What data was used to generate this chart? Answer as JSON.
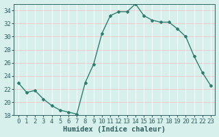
{
  "x": [
    0,
    1,
    2,
    3,
    4,
    5,
    6,
    7,
    8,
    9,
    10,
    11,
    12,
    13,
    14,
    15,
    16,
    17,
    18,
    19,
    20,
    21,
    22,
    23
  ],
  "y": [
    23,
    21.5,
    21.8,
    20.5,
    19.5,
    18.8,
    18.5,
    18.2,
    23,
    25.8,
    30.5,
    33.2,
    33.8,
    33.8,
    35,
    33.2,
    32.5,
    32.2,
    32.2,
    31.2,
    30.0,
    27.0,
    24.5,
    22.5
  ],
  "line_color": "#2e7d6e",
  "marker": "D",
  "marker_size": 2.0,
  "bg_color": "#d8f0ec",
  "grid_color_h": "#f0c8c8",
  "grid_color_v": "#ffffff",
  "tick_color": "#2e6060",
  "xlabel": "Humidex (Indice chaleur)",
  "ylim": [
    18,
    35
  ],
  "yticks": [
    18,
    20,
    22,
    24,
    26,
    28,
    30,
    32,
    34
  ],
  "xlim": [
    -0.5,
    23.5
  ],
  "xlabel_fontsize": 7.5,
  "tick_fontsize": 6.5,
  "line_width": 1.0
}
